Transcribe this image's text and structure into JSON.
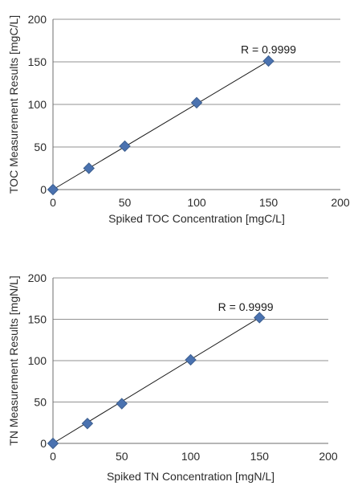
{
  "chart_data": [
    {
      "type": "scatter",
      "xlabel": "Spiked TOC Concentration [mgC/L]",
      "ylabel": "TOC Measurement Results [mgC/L]",
      "xlim": [
        0,
        200
      ],
      "ylim": [
        0,
        200
      ],
      "x_ticks": [
        "0",
        "50",
        "100",
        "150",
        "200"
      ],
      "y_ticks": [
        "0",
        "50",
        "100",
        "150",
        "200"
      ],
      "grid": "horizontal",
      "series": [
        {
          "x": [
            0,
            25,
            50,
            100,
            150
          ],
          "y": [
            0,
            25,
            51,
            102,
            151
          ]
        }
      ],
      "fit_line": {
        "x": [
          0,
          150
        ],
        "y": [
          0,
          151
        ]
      },
      "annotation": {
        "text": "R = 0.9999",
        "x": 150,
        "y": 160
      },
      "marker_color": "#4a72b0"
    },
    {
      "type": "scatter",
      "xlabel": "Spiked TN Concentration [mgN/L]",
      "ylabel": "TN Measurement Results [mgN/L]",
      "xlim": [
        0,
        200
      ],
      "ylim": [
        0,
        200
      ],
      "x_ticks": [
        "0",
        "50",
        "100",
        "150",
        "200"
      ],
      "y_ticks": [
        "0",
        "50",
        "100",
        "150",
        "200"
      ],
      "grid": "horizontal",
      "series": [
        {
          "x": [
            0,
            25,
            50,
            100,
            150
          ],
          "y": [
            0,
            24,
            48,
            101,
            152
          ]
        }
      ],
      "fit_line": {
        "x": [
          0,
          150
        ],
        "y": [
          0,
          152
        ]
      },
      "annotation": {
        "text": "R = 0.9999",
        "x": 140,
        "y": 160
      },
      "marker_color": "#4a72b0"
    }
  ]
}
